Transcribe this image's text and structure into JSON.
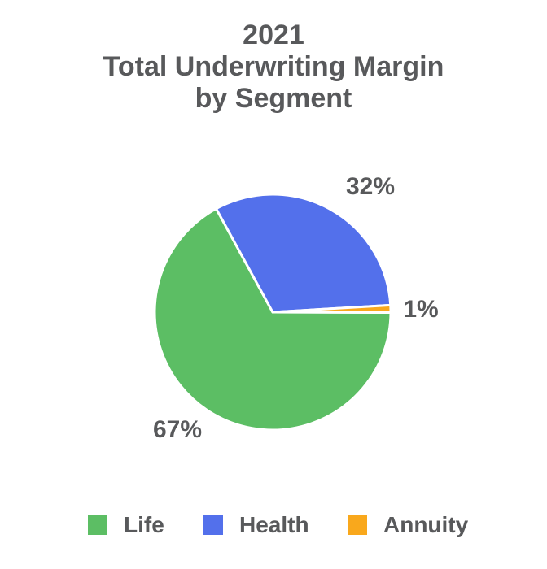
{
  "page": {
    "background": "#ffffff"
  },
  "chart_data": {
    "type": "pie",
    "title": "2021 Total Underwriting Margin by Segment",
    "title_lines": [
      "2021",
      "Total Underwriting Margin",
      "by Segment"
    ],
    "legend_position": "bottom",
    "rotation_deg": 90.2,
    "text_color": "#58595B",
    "slice_border_color": "#ffffff",
    "slices": [
      {
        "name": "Life",
        "value": 67,
        "label": "67%",
        "color": "#5CBE64"
      },
      {
        "name": "Health",
        "value": 32,
        "label": "32%",
        "color": "#5370EB"
      },
      {
        "name": "Annuity",
        "value": 1,
        "label": "1%",
        "color": "#F9A81C"
      }
    ]
  }
}
